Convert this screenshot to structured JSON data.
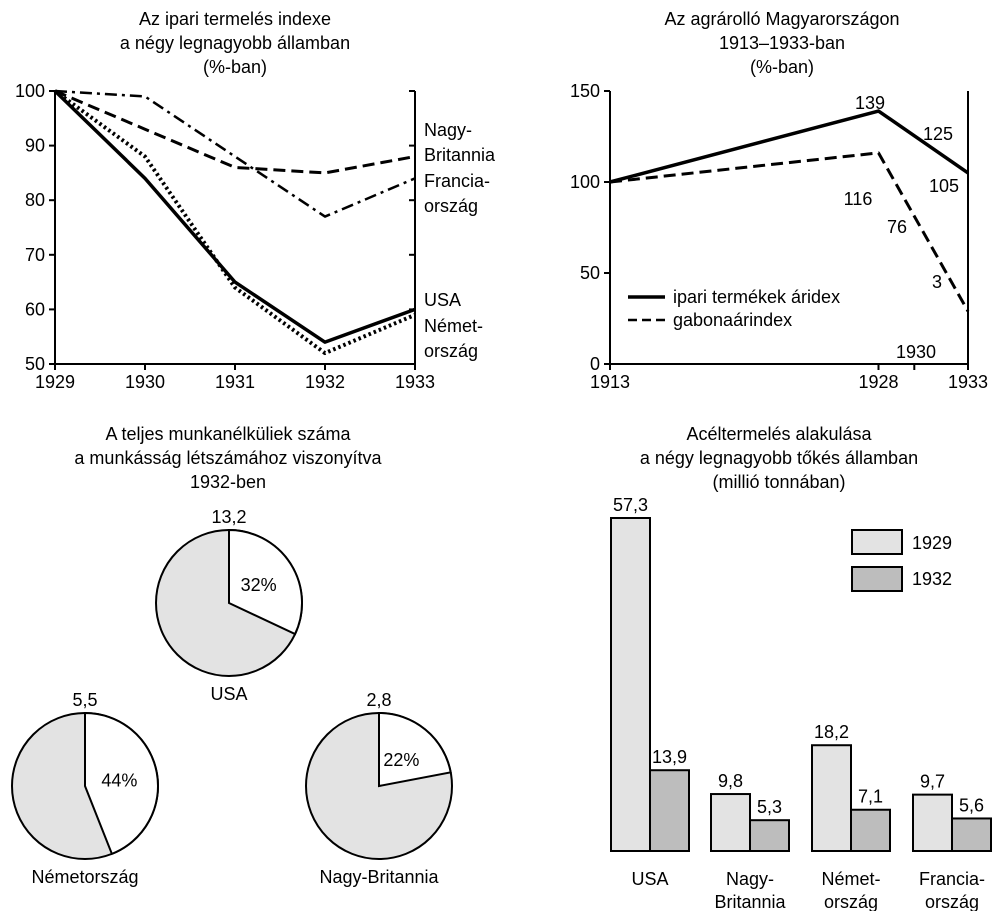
{
  "chart_data": [
    {
      "type": "line",
      "title": [
        "Az ipari termelés indexe",
        "a négy legnagyobb államban",
        "(%-ban)"
      ],
      "x": [
        1929,
        1930,
        1931,
        1932,
        1933
      ],
      "x_tick_labels": [
        "1929",
        "1930",
        "1931",
        "1932",
        "1933"
      ],
      "ylim": [
        50,
        100
      ],
      "y_ticks": [
        50,
        60,
        70,
        80,
        90,
        100
      ],
      "y_tick_labels": [
        "50",
        "60",
        "70",
        "80",
        "90",
        "100"
      ],
      "series": [
        {
          "key": "gb",
          "style": "dashed",
          "values": [
            100,
            93,
            86,
            85,
            88
          ]
        },
        {
          "key": "fr",
          "style": "dashdot",
          "values": [
            100,
            99,
            88,
            77,
            84
          ]
        },
        {
          "key": "us",
          "style": "solid",
          "values": [
            100,
            84,
            65,
            54,
            60
          ]
        },
        {
          "key": "de",
          "style": "dotted",
          "values": [
            100,
            88,
            64,
            52,
            59
          ]
        }
      ],
      "series_labels": [
        {
          "lines": [
            "Nagy-",
            "Britannia"
          ]
        },
        {
          "lines": [
            "Francia-",
            "ország"
          ]
        },
        {
          "lines": [
            "USA"
          ]
        },
        {
          "lines": [
            "Német-",
            "ország"
          ]
        }
      ]
    },
    {
      "type": "line",
      "title": [
        "Az agrárolló Magyarországon",
        "1913–1933-ban",
        "(%-ban)"
      ],
      "x": [
        1913,
        1928,
        1930,
        1933
      ],
      "x_tick_labels": [
        "1913",
        "1928",
        "1933"
      ],
      "x_extra_label": "1930",
      "ylim": [
        0,
        150
      ],
      "y_ticks": [
        0,
        50,
        100,
        150
      ],
      "y_tick_labels": [
        "0",
        "50",
        "100",
        "150"
      ],
      "series": [
        {
          "name": "ipari termékek áridex",
          "style": "solid",
          "x": [
            1913,
            1928,
            1933
          ],
          "values": [
            100,
            139,
            105
          ]
        },
        {
          "name": "gabonaárindex",
          "style": "dashed",
          "x": [
            1913,
            1928,
            1933
          ],
          "values": [
            100,
            116,
            29
          ]
        }
      ],
      "point_labels": [
        "139",
        "125",
        "105",
        "116",
        "76",
        "3"
      ],
      "legend": "lower-left"
    },
    {
      "type": "pie",
      "title": [
        "A teljes munkanélküliek száma",
        "a munkásság létszámához viszonyítva",
        "1932-ben"
      ],
      "pies": [
        {
          "country": "USA",
          "value_label": "13,2",
          "share": 32,
          "share_label": "32%"
        },
        {
          "country": "Németország",
          "value_label": "5,5",
          "share": 44,
          "share_label": "44%"
        },
        {
          "country": "Nagy-Britannia",
          "value_label": "2,8",
          "share": 22,
          "share_label": "22%"
        }
      ]
    },
    {
      "type": "bar",
      "title": [
        "Acéltermelés alakulása",
        "a négy legnagyobb tőkés államban",
        "(millió tonnában)"
      ],
      "categories": [
        [
          "USA"
        ],
        [
          "Nagy-",
          "Britannia"
        ],
        [
          "Német-",
          "ország"
        ],
        [
          "Francia-",
          "ország"
        ]
      ],
      "series": [
        {
          "name": "1929",
          "color": "#e3e3e3",
          "values": [
            57.3,
            9.8,
            18.2,
            9.7
          ],
          "labels": [
            "57,3",
            "9,8",
            "18,2",
            "9,7"
          ]
        },
        {
          "name": "1932",
          "color": "#bdbdbd",
          "values": [
            13.9,
            5.3,
            7.1,
            5.6
          ],
          "labels": [
            "13,9",
            "5,3",
            "7,1",
            "5,6"
          ]
        }
      ],
      "legend": "top-right"
    }
  ]
}
